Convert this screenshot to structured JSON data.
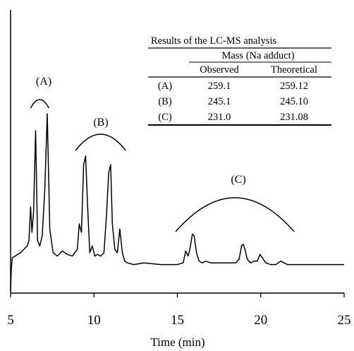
{
  "chart_data": {
    "type": "line",
    "title": "",
    "xlabel": "Time (min)",
    "ylabel": "",
    "xlim": [
      5,
      25
    ],
    "x_ticks": [
      5,
      10,
      15,
      20,
      25
    ],
    "grid": false,
    "legend": "none",
    "series": [
      {
        "x": [
          5.1,
          5.6,
          5.8,
          6.0,
          6.1,
          6.2,
          6.28,
          6.38,
          6.5,
          6.62,
          6.75,
          6.9,
          7.05,
          7.2,
          7.35,
          7.55,
          7.8,
          8.1,
          8.4,
          8.7,
          9.0,
          9.12,
          9.25,
          9.38,
          9.5,
          9.62,
          9.75,
          9.9,
          10.05,
          10.2,
          10.4,
          10.6,
          10.75,
          10.88,
          11.0,
          11.1,
          11.25,
          11.4,
          11.55,
          11.7,
          11.85,
          12.0,
          12.4,
          13.0,
          14.0,
          15.0,
          15.35,
          15.5,
          15.65,
          15.75,
          15.9,
          16.0,
          16.15,
          16.3,
          16.5,
          16.7,
          17.0,
          17.5,
          18.0,
          18.5,
          18.7,
          18.85,
          18.95,
          19.05,
          19.2,
          19.4,
          19.6,
          19.8,
          19.95,
          20.1,
          20.3,
          20.6,
          20.9,
          21.2,
          21.4,
          21.6,
          22.0,
          23.0,
          24.0,
          25.0
        ],
        "y": [
          0.05,
          0.08,
          0.1,
          0.12,
          0.15,
          0.35,
          0.2,
          0.32,
          0.8,
          0.15,
          0.12,
          0.18,
          0.45,
          0.9,
          0.22,
          0.08,
          0.06,
          0.09,
          0.07,
          0.06,
          0.1,
          0.25,
          0.2,
          0.6,
          0.65,
          0.35,
          0.08,
          0.12,
          0.06,
          0.07,
          0.06,
          0.08,
          0.3,
          0.55,
          0.6,
          0.25,
          0.1,
          0.08,
          0.22,
          0.08,
          0.03,
          0.02,
          0.01,
          0.02,
          0.01,
          0.01,
          0.02,
          0.09,
          0.06,
          0.1,
          0.19,
          0.18,
          0.08,
          0.03,
          0.02,
          0.03,
          0.02,
          0.02,
          0.02,
          0.02,
          0.04,
          0.12,
          0.13,
          0.1,
          0.04,
          0.02,
          0.03,
          0.03,
          0.07,
          0.05,
          0.02,
          0.01,
          0.01,
          0.03,
          0.02,
          0.01,
          0.01,
          0.01,
          0.01,
          0.01
        ]
      }
    ],
    "annotations": [
      {
        "label": "(A)",
        "x_start": 6.2,
        "x_end": 7.3
      },
      {
        "label": "(B)",
        "x_start": 8.9,
        "x_end": 11.9
      },
      {
        "label": "(C)",
        "x_start": 14.9,
        "x_end": 22.0
      }
    ]
  },
  "table": {
    "title": "Results of the LC-MS analysis",
    "group_header": "Mass (Na adduct)",
    "col_observed": "Observed",
    "col_theoretical": "Theoretical",
    "rows": [
      {
        "label": "(A)",
        "observed": "259.1",
        "theoretical": "259.12"
      },
      {
        "label": "(B)",
        "observed": "245.1",
        "theoretical": "245.10"
      },
      {
        "label": "(C)",
        "observed": "231.0",
        "theoretical": "231.08"
      }
    ]
  }
}
